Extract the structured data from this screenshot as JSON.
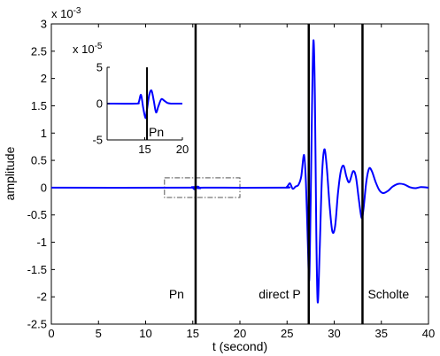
{
  "chart_data": {
    "type": "line",
    "xlabel": "t (second)",
    "ylabel": "amplitude",
    "xlim": [
      0,
      40
    ],
    "ylim": [
      -0.0025,
      0.003
    ],
    "xticks": [
      "0",
      "5",
      "10",
      "15",
      "20",
      "25",
      "30",
      "35",
      "40"
    ],
    "yticks": [
      "-2.5",
      "-2",
      "-1.5",
      "-1",
      "-0.5",
      "0",
      "0.5",
      "1",
      "1.5",
      "2",
      "2.5",
      "3"
    ],
    "y_multiplier": "x 10",
    "y_exponent": "-3",
    "grid": false,
    "series": [
      {
        "color": "#0000ff",
        "x": [
          0,
          14.5,
          14.9,
          15.2,
          15.5,
          15.8,
          16.2,
          24.5,
          25.0,
          25.3,
          25.6,
          25.9,
          26.2,
          26.5,
          26.8,
          27.0,
          27.2,
          27.35,
          27.5,
          27.65,
          27.8,
          27.95,
          28.1,
          28.25,
          28.45,
          28.7,
          28.95,
          29.2,
          29.5,
          29.8,
          30.1,
          30.4,
          30.7,
          31.0,
          31.3,
          31.6,
          32.0,
          32.3,
          32.6,
          32.9,
          33.1,
          33.4,
          33.7,
          34.0,
          34.4,
          34.8,
          35.2,
          35.7,
          36.2,
          36.8,
          37.4,
          38.0,
          38.6,
          39.2,
          40.0
        ],
        "y": [
          0,
          0,
          1e-05,
          -3e-05,
          2e-05,
          -1e-05,
          0,
          0,
          2e-05,
          8e-05,
          -2e-05,
          2e-05,
          5e-05,
          0.0002,
          0.0006,
          0.0001,
          -0.001,
          -0.0017,
          -0.0003,
          0.0015,
          0.0027,
          0.0017,
          -0.0008,
          -0.0021,
          -0.0012,
          0.0002,
          0.0007,
          0.0004,
          -0.0003,
          -0.0008,
          -0.0007,
          -0.0001,
          0.0003,
          0.0004,
          0.0002,
          0.0001,
          0.0003,
          0.0002,
          -0.0002,
          -0.00055,
          -0.0004,
          0.0001,
          0.00035,
          0.0003,
          0.0001,
          -5e-05,
          -0.0001,
          -6e-05,
          2e-05,
          7e-05,
          6e-05,
          1e-05,
          -1e-05,
          1e-05,
          0
        ]
      }
    ],
    "vertical_markers": [
      {
        "x": 15.3,
        "label": "Pn"
      },
      {
        "x": 27.3,
        "label": "direct P"
      },
      {
        "x": 33.0,
        "label": "Scholte"
      }
    ],
    "zoom_box": {
      "xlim": [
        12,
        20
      ],
      "ylim": [
        -0.00018,
        0.00018
      ]
    },
    "inset": {
      "type": "line",
      "xlim": [
        10,
        20
      ],
      "ylim": [
        -5e-05,
        5e-05
      ],
      "xticks": [
        "15",
        "20"
      ],
      "yticks": [
        "-5",
        "0",
        "5"
      ],
      "y_multiplier": "x 10",
      "y_exponent": "-5",
      "marker": {
        "x": 15.3,
        "label": "Pn"
      },
      "series": [
        {
          "color": "#0000ff",
          "x": [
            10,
            13.8,
            14.2,
            14.5,
            14.8,
            15.1,
            15.3,
            15.6,
            15.9,
            16.2,
            16.5,
            16.8,
            17.2,
            17.6,
            18.0,
            18.5,
            19.0,
            20.0
          ],
          "y": [
            0,
            0,
            2e-06,
            1.2e-05,
            -6e-06,
            -2e-05,
            -8e-06,
            1.2e-05,
            1.8e-05,
            4e-06,
            -1.2e-05,
            -4e-06,
            6e-06,
            4e-06,
            1e-06,
            0,
            0,
            0
          ]
        }
      ]
    }
  }
}
